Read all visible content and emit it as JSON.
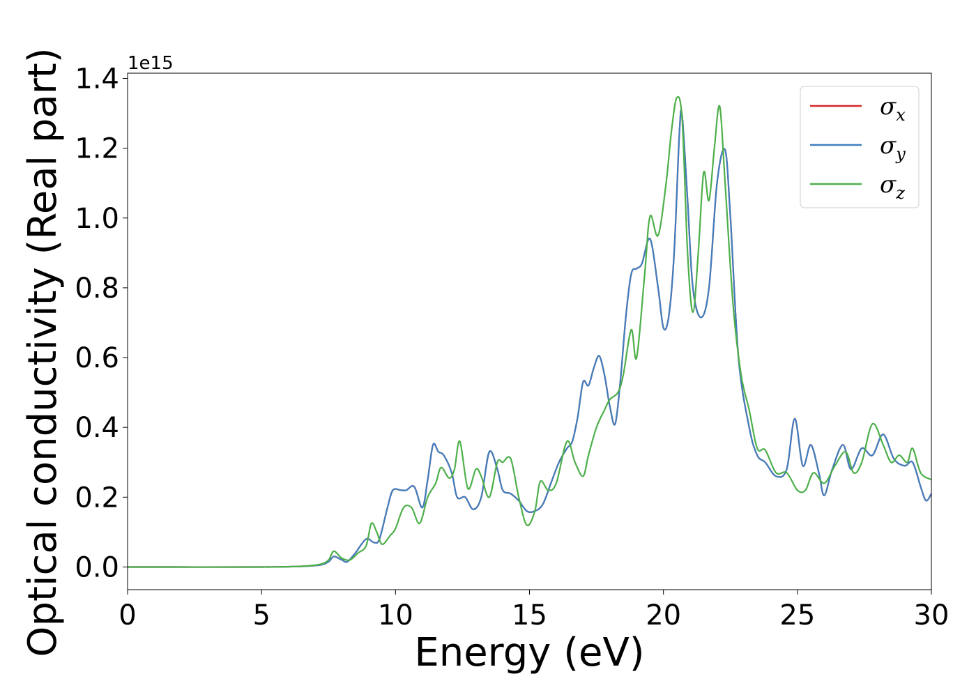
{
  "chart_data": {
    "type": "line",
    "xlabel": "Energy (eV)",
    "ylabel": "Optical conductivity (Real part)",
    "y_offset_label": "1e15",
    "xlim": [
      0,
      30
    ],
    "ylim": [
      -0.065,
      1.415
    ],
    "x_ticks": [
      0,
      5,
      10,
      15,
      20,
      25,
      30
    ],
    "x_tick_labels": [
      "0",
      "5",
      "10",
      "15",
      "20",
      "25",
      "30"
    ],
    "y_ticks": [
      0.0,
      0.2,
      0.4,
      0.6,
      0.8,
      1.0,
      1.2,
      1.4
    ],
    "y_tick_labels": [
      "0.0",
      "0.2",
      "0.4",
      "0.6",
      "0.8",
      "1.0",
      "1.2",
      "1.4"
    ],
    "grid": false,
    "legend_position": "top-right",
    "series": [
      {
        "name": "σx",
        "legend_base": "σ",
        "legend_sub": "x",
        "color": "#d62728",
        "points": [
          [
            0,
            0
          ],
          [
            5,
            0
          ],
          [
            6.5,
            0.002
          ],
          [
            7.2,
            0.006
          ],
          [
            7.5,
            0.015
          ],
          [
            7.7,
            0.03
          ],
          [
            8.0,
            0.02
          ],
          [
            8.2,
            0.015
          ],
          [
            8.5,
            0.04
          ],
          [
            8.9,
            0.08
          ],
          [
            9.2,
            0.07
          ],
          [
            9.4,
            0.08
          ],
          [
            9.7,
            0.17
          ],
          [
            9.9,
            0.22
          ],
          [
            10.2,
            0.22
          ],
          [
            10.4,
            0.22
          ],
          [
            10.7,
            0.23
          ],
          [
            11.0,
            0.17
          ],
          [
            11.2,
            0.25
          ],
          [
            11.4,
            0.35
          ],
          [
            11.6,
            0.33
          ],
          [
            11.8,
            0.32
          ],
          [
            12.1,
            0.27
          ],
          [
            12.3,
            0.2
          ],
          [
            12.6,
            0.2
          ],
          [
            12.9,
            0.165
          ],
          [
            13.2,
            0.2
          ],
          [
            13.5,
            0.33
          ],
          [
            13.8,
            0.28
          ],
          [
            14.0,
            0.22
          ],
          [
            14.3,
            0.21
          ],
          [
            14.6,
            0.19
          ],
          [
            14.9,
            0.16
          ],
          [
            15.2,
            0.16
          ],
          [
            15.5,
            0.18
          ],
          [
            15.8,
            0.24
          ],
          [
            16.1,
            0.3
          ],
          [
            16.4,
            0.34
          ],
          [
            16.6,
            0.36
          ],
          [
            16.8,
            0.43
          ],
          [
            17.0,
            0.53
          ],
          [
            17.2,
            0.52
          ],
          [
            17.4,
            0.57
          ],
          [
            17.6,
            0.605
          ],
          [
            17.8,
            0.55
          ],
          [
            18.0,
            0.46
          ],
          [
            18.2,
            0.41
          ],
          [
            18.4,
            0.54
          ],
          [
            18.6,
            0.72
          ],
          [
            18.8,
            0.84
          ],
          [
            19.0,
            0.855
          ],
          [
            19.2,
            0.87
          ],
          [
            19.5,
            0.94
          ],
          [
            19.8,
            0.8
          ],
          [
            20.0,
            0.685
          ],
          [
            20.2,
            0.72
          ],
          [
            20.4,
            0.9
          ],
          [
            20.6,
            1.25
          ],
          [
            20.7,
            1.29
          ],
          [
            20.9,
            1.05
          ],
          [
            21.1,
            0.8
          ],
          [
            21.4,
            0.715
          ],
          [
            21.7,
            0.8
          ],
          [
            22.0,
            1.1
          ],
          [
            22.3,
            1.195
          ],
          [
            22.5,
            1.0
          ],
          [
            22.8,
            0.6
          ],
          [
            23.2,
            0.4
          ],
          [
            23.5,
            0.32
          ],
          [
            23.8,
            0.3
          ],
          [
            24.2,
            0.26
          ],
          [
            24.6,
            0.28
          ],
          [
            24.9,
            0.425
          ],
          [
            25.2,
            0.29
          ],
          [
            25.5,
            0.35
          ],
          [
            25.8,
            0.27
          ],
          [
            26.0,
            0.205
          ],
          [
            26.3,
            0.28
          ],
          [
            26.7,
            0.35
          ],
          [
            27.0,
            0.28
          ],
          [
            27.4,
            0.34
          ],
          [
            27.8,
            0.32
          ],
          [
            28.2,
            0.38
          ],
          [
            28.6,
            0.31
          ],
          [
            29.0,
            0.29
          ],
          [
            29.3,
            0.3
          ],
          [
            29.6,
            0.23
          ],
          [
            29.8,
            0.19
          ],
          [
            30.0,
            0.21
          ]
        ]
      },
      {
        "name": "σy",
        "legend_base": "σ",
        "legend_sub": "y",
        "color": "#3f7fbf",
        "points": [
          [
            0,
            0
          ],
          [
            5,
            0
          ],
          [
            6.5,
            0.002
          ],
          [
            7.2,
            0.006
          ],
          [
            7.5,
            0.015
          ],
          [
            7.7,
            0.03
          ],
          [
            8.0,
            0.02
          ],
          [
            8.2,
            0.015
          ],
          [
            8.5,
            0.04
          ],
          [
            8.9,
            0.08
          ],
          [
            9.2,
            0.07
          ],
          [
            9.4,
            0.08
          ],
          [
            9.7,
            0.17
          ],
          [
            9.9,
            0.22
          ],
          [
            10.2,
            0.22
          ],
          [
            10.4,
            0.22
          ],
          [
            10.7,
            0.23
          ],
          [
            11.0,
            0.17
          ],
          [
            11.2,
            0.25
          ],
          [
            11.4,
            0.35
          ],
          [
            11.6,
            0.33
          ],
          [
            11.8,
            0.32
          ],
          [
            12.1,
            0.27
          ],
          [
            12.3,
            0.2
          ],
          [
            12.6,
            0.2
          ],
          [
            12.9,
            0.165
          ],
          [
            13.2,
            0.2
          ],
          [
            13.5,
            0.33
          ],
          [
            13.8,
            0.28
          ],
          [
            14.0,
            0.22
          ],
          [
            14.3,
            0.21
          ],
          [
            14.6,
            0.19
          ],
          [
            14.9,
            0.16
          ],
          [
            15.2,
            0.16
          ],
          [
            15.5,
            0.18
          ],
          [
            15.8,
            0.24
          ],
          [
            16.1,
            0.3
          ],
          [
            16.4,
            0.34
          ],
          [
            16.6,
            0.36
          ],
          [
            16.8,
            0.43
          ],
          [
            17.0,
            0.53
          ],
          [
            17.2,
            0.52
          ],
          [
            17.4,
            0.57
          ],
          [
            17.6,
            0.605
          ],
          [
            17.8,
            0.55
          ],
          [
            18.0,
            0.46
          ],
          [
            18.2,
            0.41
          ],
          [
            18.4,
            0.54
          ],
          [
            18.6,
            0.72
          ],
          [
            18.8,
            0.84
          ],
          [
            19.0,
            0.855
          ],
          [
            19.2,
            0.87
          ],
          [
            19.5,
            0.94
          ],
          [
            19.8,
            0.8
          ],
          [
            20.0,
            0.685
          ],
          [
            20.2,
            0.72
          ],
          [
            20.4,
            0.9
          ],
          [
            20.6,
            1.25
          ],
          [
            20.7,
            1.29
          ],
          [
            20.9,
            1.05
          ],
          [
            21.1,
            0.8
          ],
          [
            21.4,
            0.715
          ],
          [
            21.7,
            0.8
          ],
          [
            22.0,
            1.1
          ],
          [
            22.3,
            1.195
          ],
          [
            22.5,
            1.0
          ],
          [
            22.8,
            0.6
          ],
          [
            23.2,
            0.4
          ],
          [
            23.5,
            0.32
          ],
          [
            23.8,
            0.3
          ],
          [
            24.2,
            0.26
          ],
          [
            24.6,
            0.28
          ],
          [
            24.9,
            0.425
          ],
          [
            25.2,
            0.29
          ],
          [
            25.5,
            0.35
          ],
          [
            25.8,
            0.27
          ],
          [
            26.0,
            0.205
          ],
          [
            26.3,
            0.28
          ],
          [
            26.7,
            0.35
          ],
          [
            27.0,
            0.28
          ],
          [
            27.4,
            0.34
          ],
          [
            27.8,
            0.32
          ],
          [
            28.2,
            0.38
          ],
          [
            28.6,
            0.31
          ],
          [
            29.0,
            0.29
          ],
          [
            29.3,
            0.3
          ],
          [
            29.6,
            0.23
          ],
          [
            29.8,
            0.19
          ],
          [
            30.0,
            0.21
          ]
        ]
      },
      {
        "name": "σz",
        "legend_base": "σ",
        "legend_sub": "z",
        "color": "#4daf4a",
        "points": [
          [
            0,
            0
          ],
          [
            5,
            0
          ],
          [
            6.5,
            0.002
          ],
          [
            7.2,
            0.008
          ],
          [
            7.5,
            0.02
          ],
          [
            7.7,
            0.045
          ],
          [
            8.0,
            0.025
          ],
          [
            8.3,
            0.02
          ],
          [
            8.6,
            0.04
          ],
          [
            8.9,
            0.06
          ],
          [
            9.1,
            0.125
          ],
          [
            9.3,
            0.1
          ],
          [
            9.5,
            0.065
          ],
          [
            9.8,
            0.09
          ],
          [
            10.0,
            0.11
          ],
          [
            10.3,
            0.17
          ],
          [
            10.6,
            0.17
          ],
          [
            10.9,
            0.125
          ],
          [
            11.2,
            0.2
          ],
          [
            11.5,
            0.24
          ],
          [
            11.7,
            0.285
          ],
          [
            12.0,
            0.255
          ],
          [
            12.2,
            0.28
          ],
          [
            12.4,
            0.36
          ],
          [
            12.7,
            0.225
          ],
          [
            13.0,
            0.28
          ],
          [
            13.2,
            0.26
          ],
          [
            13.5,
            0.2
          ],
          [
            13.8,
            0.3
          ],
          [
            14.0,
            0.3
          ],
          [
            14.3,
            0.31
          ],
          [
            14.6,
            0.2
          ],
          [
            14.9,
            0.12
          ],
          [
            15.2,
            0.16
          ],
          [
            15.4,
            0.245
          ],
          [
            15.7,
            0.22
          ],
          [
            16.0,
            0.24
          ],
          [
            16.4,
            0.36
          ],
          [
            16.7,
            0.3
          ],
          [
            17.0,
            0.26
          ],
          [
            17.2,
            0.32
          ],
          [
            17.5,
            0.4
          ],
          [
            17.8,
            0.45
          ],
          [
            18.0,
            0.48
          ],
          [
            18.3,
            0.5
          ],
          [
            18.5,
            0.55
          ],
          [
            18.8,
            0.68
          ],
          [
            19.0,
            0.6
          ],
          [
            19.3,
            0.84
          ],
          [
            19.5,
            1.005
          ],
          [
            19.8,
            0.95
          ],
          [
            20.1,
            1.1
          ],
          [
            20.3,
            1.25
          ],
          [
            20.5,
            1.345
          ],
          [
            20.7,
            1.28
          ],
          [
            20.9,
            0.9
          ],
          [
            21.1,
            0.73
          ],
          [
            21.3,
            0.9
          ],
          [
            21.5,
            1.13
          ],
          [
            21.7,
            1.05
          ],
          [
            21.9,
            1.2
          ],
          [
            22.1,
            1.32
          ],
          [
            22.3,
            1.1
          ],
          [
            22.6,
            0.75
          ],
          [
            22.9,
            0.55
          ],
          [
            23.2,
            0.45
          ],
          [
            23.5,
            0.34
          ],
          [
            23.8,
            0.335
          ],
          [
            24.2,
            0.27
          ],
          [
            24.6,
            0.27
          ],
          [
            25.0,
            0.22
          ],
          [
            25.3,
            0.22
          ],
          [
            25.6,
            0.27
          ],
          [
            26.0,
            0.24
          ],
          [
            26.4,
            0.29
          ],
          [
            26.8,
            0.33
          ],
          [
            27.1,
            0.27
          ],
          [
            27.4,
            0.3
          ],
          [
            27.8,
            0.41
          ],
          [
            28.2,
            0.35
          ],
          [
            28.5,
            0.3
          ],
          [
            28.8,
            0.32
          ],
          [
            29.1,
            0.3
          ],
          [
            29.3,
            0.34
          ],
          [
            29.6,
            0.27
          ],
          [
            30.0,
            0.25
          ]
        ]
      }
    ]
  }
}
